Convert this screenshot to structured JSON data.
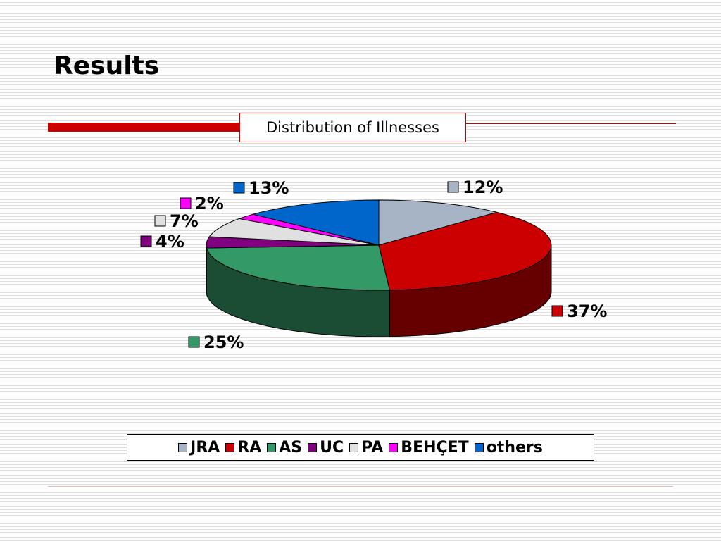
{
  "slide": {
    "title": "Results"
  },
  "chart_data": {
    "type": "pie",
    "title": "Distribution of Illnesses",
    "three_d": true,
    "legend_position": "bottom",
    "categories": [
      "JRA",
      "RA",
      "AS",
      "UC",
      "PA",
      "BEHÇET",
      "others"
    ],
    "values": [
      12,
      37,
      25,
      4,
      7,
      2,
      13
    ],
    "labels": [
      "12%",
      "37%",
      "25%",
      "4%",
      "7%",
      "2%",
      "13%"
    ],
    "colors": [
      "#a6b4c6",
      "#cc0000",
      "#339966",
      "#800080",
      "#e0e0e0",
      "#ff00ff",
      "#0066cc"
    ],
    "side_colors": [
      "#59606a",
      "#660000",
      "#1b4d34",
      "#400040",
      "#777777",
      "#880088",
      "#003366"
    ]
  }
}
